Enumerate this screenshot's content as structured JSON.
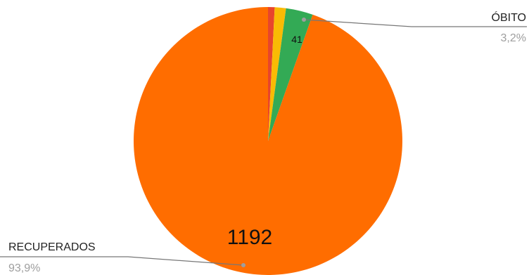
{
  "chart_data": {
    "type": "pie",
    "slices": [
      {
        "label": "",
        "value": 10,
        "percent_label": "",
        "color": "#e8452c",
        "value_label": ""
      },
      {
        "label": "",
        "value": 17,
        "percent_label": "",
        "color": "#f9bb04",
        "value_label": ""
      },
      {
        "label": "ÓBITO",
        "value": 41,
        "percent_label": "3,2%",
        "color": "#33aa55",
        "value_label": "41"
      },
      {
        "label": "RECUPERADOS",
        "value": 1192,
        "percent_label": "93,9%",
        "color": "#ff6d00",
        "value_label": "1192"
      }
    ],
    "start_angle_deg": 0,
    "legend": "callouts"
  },
  "labels": {
    "obito_name": "ÓBITO",
    "obito_pct": "3,2%",
    "recuperados_name": "RECUPERADOS",
    "recuperados_pct": "93,9%",
    "obito_value": "41",
    "recuperados_value": "1192"
  }
}
